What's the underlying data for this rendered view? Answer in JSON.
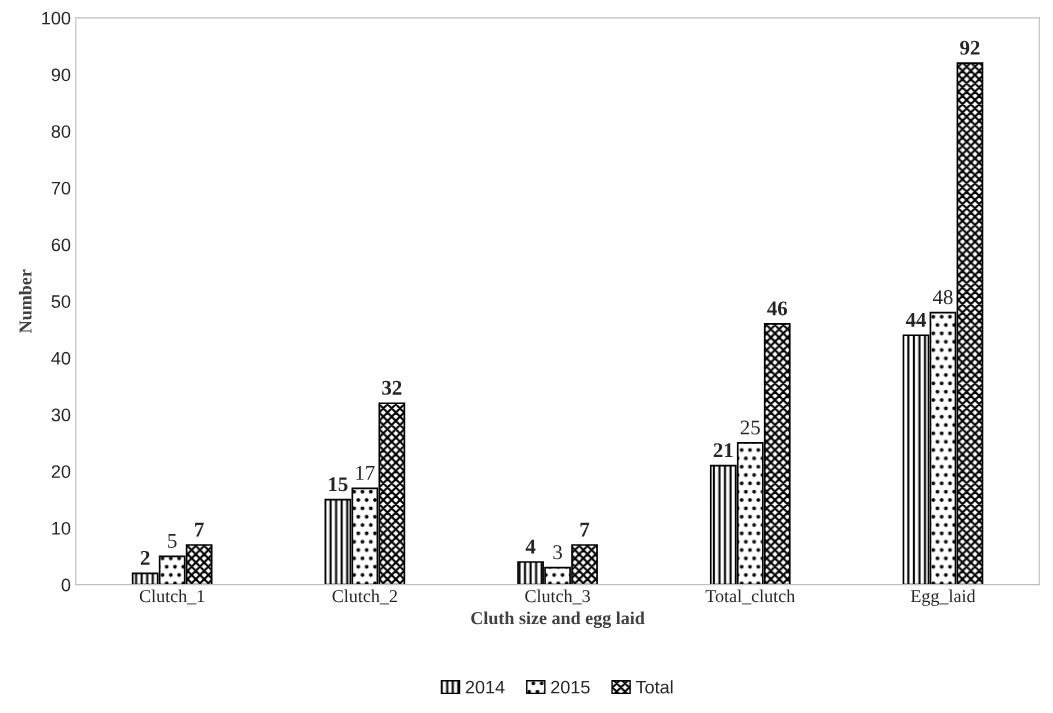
{
  "chart_data": {
    "type": "bar",
    "xlabel": "Cluth size and egg laid",
    "ylabel": "Number",
    "categories": [
      "Clutch_1",
      "Clutch_2",
      "Clutch_3",
      "Total_clutch",
      "Egg_laid"
    ],
    "series": [
      {
        "name": "2014",
        "color": "#000000",
        "values": [
          2,
          15,
          4,
          21,
          44
        ]
      },
      {
        "name": "2015",
        "color": "#000000",
        "values": [
          5,
          17,
          3,
          25,
          48
        ]
      },
      {
        "name": "Total",
        "color": "#000000",
        "values": [
          7,
          32,
          7,
          46,
          92
        ]
      }
    ],
    "ylim": [
      0,
      100
    ],
    "yticks": [
      0,
      10,
      20,
      30,
      40,
      50,
      60,
      70,
      80,
      90,
      100
    ],
    "data_labels": true,
    "legend": "bottom",
    "grid": false
  }
}
